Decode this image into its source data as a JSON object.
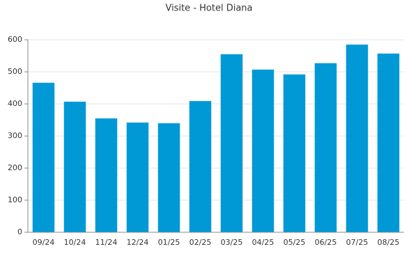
{
  "chart_data": {
    "type": "bar",
    "title": "Visite - Hotel Diana",
    "categories": [
      "09/24",
      "10/24",
      "11/24",
      "12/24",
      "01/25",
      "02/25",
      "03/25",
      "04/25",
      "05/25",
      "06/25",
      "07/25",
      "08/25"
    ],
    "values": [
      466,
      407,
      355,
      342,
      340,
      409,
      555,
      507,
      492,
      527,
      585,
      557
    ],
    "color": "#0099d6",
    "ylim": [
      0,
      600
    ],
    "yticks": [
      0,
      100,
      200,
      300,
      400,
      500,
      600
    ],
    "grid": true
  }
}
